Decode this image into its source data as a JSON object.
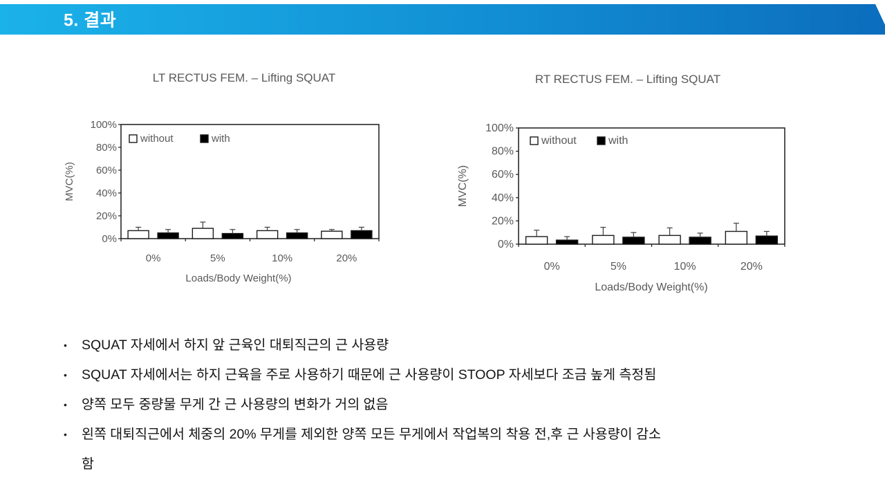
{
  "slide": {
    "header": {
      "title": "5. 결과",
      "bar_gradient_left": "#1BB2E9",
      "bar_gradient_right": "#0C6DBD",
      "text_color": "#FFFFFF"
    }
  },
  "chart_data": [
    {
      "type": "bar",
      "title": "LT RECTUS FEM. – Lifting SQUAT",
      "categories": [
        "0%",
        "5%",
        "10%",
        "20%"
      ],
      "series": [
        {
          "name": "without",
          "fill": "#FFFFFF",
          "values": [
            7,
            9,
            7,
            6.5
          ],
          "errors_plus": [
            3,
            5.5,
            3,
            1.5
          ]
        },
        {
          "name": "with",
          "fill": "#000000",
          "values": [
            5,
            4.5,
            5,
            7
          ],
          "errors_plus": [
            3,
            3.5,
            3,
            3
          ]
        }
      ],
      "xlabel": "Loads/Body Weight(%)",
      "ylabel": "MVC(%)",
      "ylim": [
        0,
        100
      ],
      "ytick_labels": [
        "0%",
        "20%",
        "40%",
        "60%",
        "80%",
        "100%"
      ],
      "legend_position": "top-left-inside",
      "grid": false
    },
    {
      "type": "bar",
      "title": "RT RECTUS FEM. – Lifting SQUAT",
      "categories": [
        "0%",
        "5%",
        "10%",
        "20%"
      ],
      "series": [
        {
          "name": "without",
          "fill": "#FFFFFF",
          "values": [
            6.5,
            7.5,
            7.5,
            11
          ],
          "errors_plus": [
            5.5,
            7,
            6.5,
            7
          ]
        },
        {
          "name": "with",
          "fill": "#000000",
          "values": [
            3.5,
            6,
            6,
            7
          ],
          "errors_plus": [
            3,
            4,
            3.5,
            4
          ]
        }
      ],
      "xlabel": "Loads/Body Weight(%)",
      "ylabel": "MVC(%)",
      "ylim": [
        0,
        100
      ],
      "ytick_labels": [
        "0%",
        "20%",
        "40%",
        "60%",
        "80%",
        "100%"
      ],
      "legend_position": "top-left-inside",
      "grid": false
    }
  ],
  "bullets": {
    "marker": "•",
    "items": [
      "SQUAT 자세에서 하지 앞 근육인 대퇴직근의 근 사용량",
      "SQUAT 자세에서는 하지 근육을 주로 사용하기 때문에 근 사용량이 STOOP 자세보다 조금 높게 측정됨",
      "양쪽 모두 중량물 무게 간 근 사용량의 변화가 거의 없음",
      "왼쪽 대퇴직근에서 체중의 20% 무게를 제외한 양쪽 모든 무게에서 작업복의 착용 전,후 근 사용량이 감소\n함"
    ]
  },
  "colors": {
    "chart_text": "#595959",
    "axis_line": "#1A1A1A",
    "error_bar": "#3D3D3D",
    "bullet_text": "#141414"
  }
}
